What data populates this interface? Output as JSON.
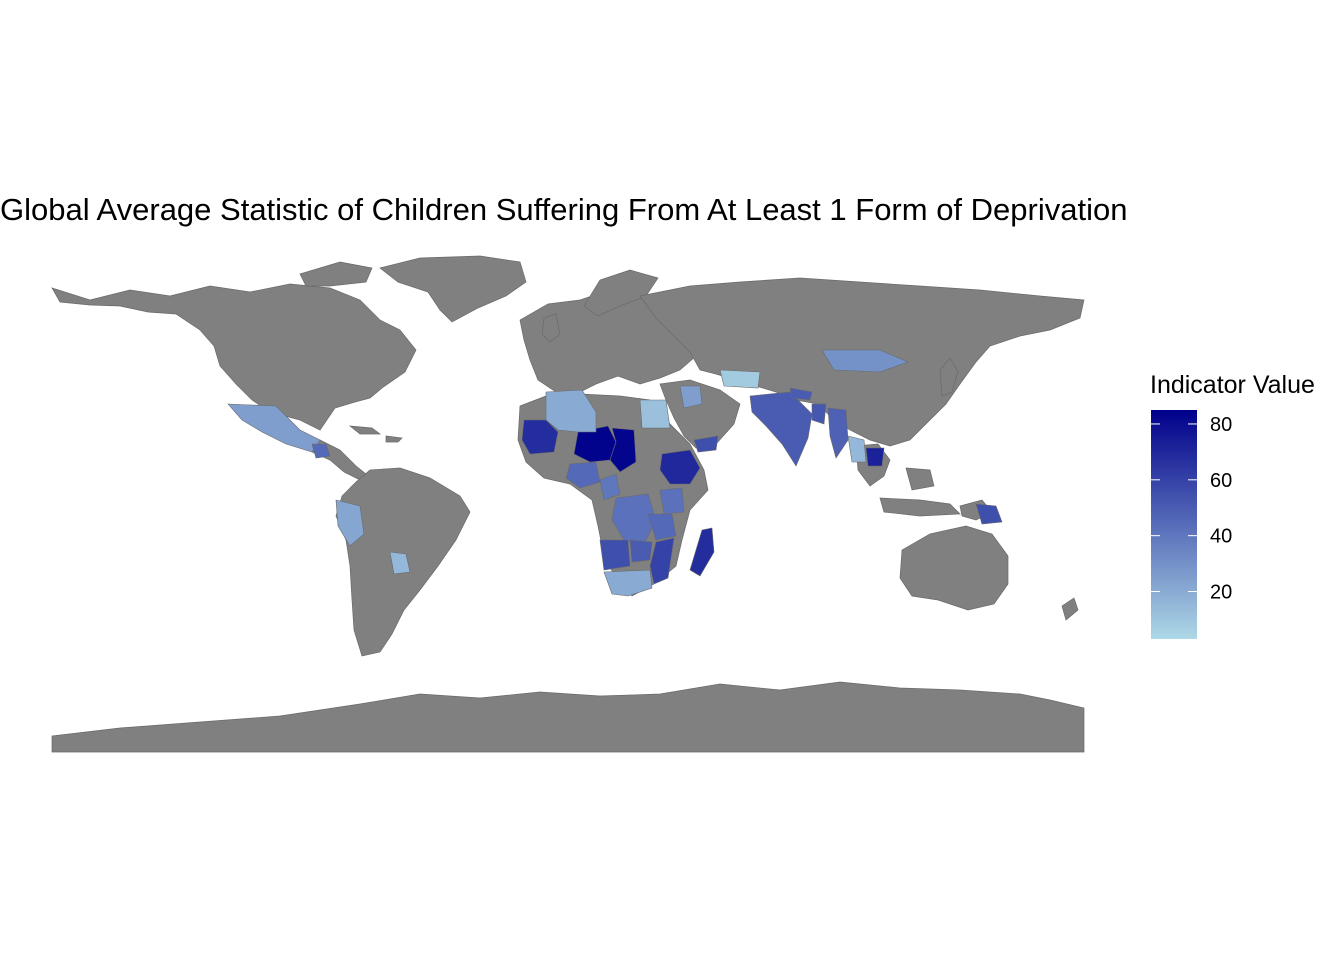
{
  "title": "Global Average Statistic of Children Suffering From At Least 1 Form of Deprivation",
  "legend": {
    "title": "Indicator Value",
    "min": 3,
    "max": 85,
    "ticks": [
      {
        "value": 80,
        "label": "80"
      },
      {
        "value": 60,
        "label": "60"
      },
      {
        "value": 40,
        "label": "40"
      },
      {
        "value": 20,
        "label": "20"
      }
    ],
    "color_low": "#add8e6",
    "color_high": "#00008b"
  },
  "colors": {
    "no_data": "#808080",
    "background": "#ffffff"
  },
  "chart_data": {
    "type": "choropleth",
    "title": "Global Average Statistic of Children Suffering From At Least 1 Form of Deprivation",
    "legend_title": "Indicator Value",
    "scale_range": [
      3,
      85
    ],
    "regions": [
      {
        "name": "Niger",
        "value": 84
      },
      {
        "name": "Chad",
        "value": 83
      },
      {
        "name": "Mali",
        "value": 68
      },
      {
        "name": "Ethiopia",
        "value": 70
      },
      {
        "name": "Madagascar",
        "value": 68
      },
      {
        "name": "Cambodia",
        "value": 72
      },
      {
        "name": "India",
        "value": 50
      },
      {
        "name": "Bangladesh",
        "value": 52
      },
      {
        "name": "Myanmar",
        "value": 48
      },
      {
        "name": "Nepal",
        "value": 50
      },
      {
        "name": "Mongolia",
        "value": 30
      },
      {
        "name": "Uzbekistan",
        "value": 8
      },
      {
        "name": "Iraq",
        "value": 25
      },
      {
        "name": "Yemen",
        "value": 55
      },
      {
        "name": "Algeria",
        "value": 20
      },
      {
        "name": "Egypt",
        "value": 12
      },
      {
        "name": "Mexico",
        "value": 25
      },
      {
        "name": "Guatemala",
        "value": 45
      },
      {
        "name": "Peru",
        "value": 22
      },
      {
        "name": "Paraguay",
        "value": 15
      },
      {
        "name": "Democratic Republic of the Congo",
        "value": 42
      },
      {
        "name": "Angola",
        "value": 55
      },
      {
        "name": "Zambia",
        "value": 50
      },
      {
        "name": "Mozambique",
        "value": 60
      },
      {
        "name": "Tanzania",
        "value": 45
      },
      {
        "name": "Kenya",
        "value": 42
      },
      {
        "name": "South Africa",
        "value": 20
      },
      {
        "name": "Nigeria",
        "value": 45
      },
      {
        "name": "Cameroon",
        "value": 40
      },
      {
        "name": "Papua New Guinea",
        "value": 55
      },
      {
        "name": "Thailand",
        "value": 15
      }
    ]
  }
}
